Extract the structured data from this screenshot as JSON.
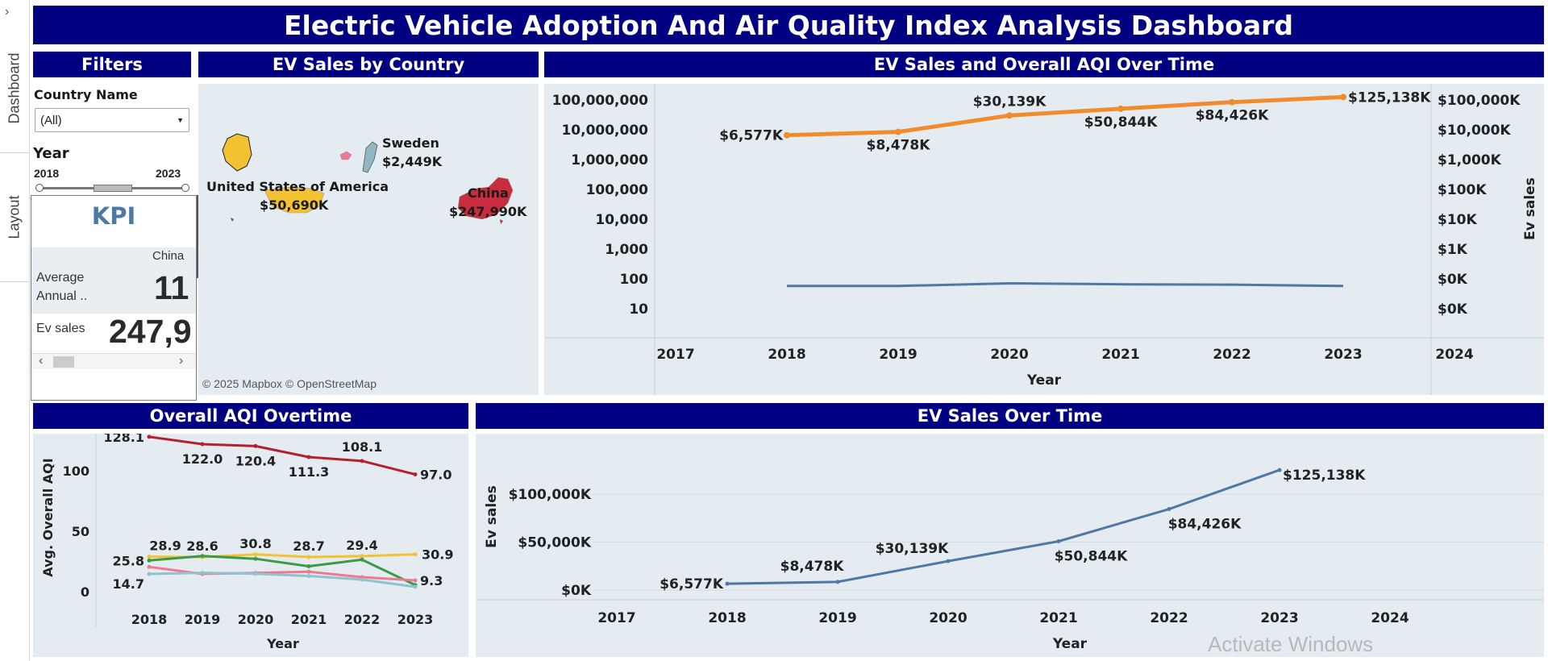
{
  "sidebar": {
    "expand_label": "›",
    "tabs": [
      "Dashboard",
      "Layout"
    ]
  },
  "dashboard": {
    "title": "Electric Vehicle Adoption And Air Quality Index Analysis Dashboard"
  },
  "filters": {
    "title": "Filters",
    "country_label": "Country Name",
    "country_value": "(All)",
    "year_label": "Year",
    "year_min": "2018",
    "year_max": "2023"
  },
  "kpi": {
    "title": "KPI",
    "column_header": "China",
    "row1_label_line1": "Average",
    "row1_label_line2": "Annual ..",
    "row1_value": "11",
    "row2_label": "Ev sales",
    "row2_value": "247,9",
    "scroll_left": "‹",
    "scroll_right": "›"
  },
  "map": {
    "title": "EV Sales by Country",
    "attribution": "© 2025 Mapbox © OpenStreetMap",
    "countries": [
      {
        "name": "United States of America",
        "value": "$50,690K",
        "color": "#f2c233"
      },
      {
        "name": "Sweden",
        "value": "$2,449K",
        "color": "#8fb8c4"
      },
      {
        "name": "China",
        "value": "$247,990K",
        "color": "#c92c3c"
      }
    ]
  },
  "colors": {
    "banner": "#000080",
    "panel": "#e4ecf1",
    "orange": "#f08c2e",
    "blue": "#4e79a7"
  },
  "chart_data": [
    {
      "type": "line",
      "title": "EV Sales and Overall AQI Over Time",
      "xlabel": "Year",
      "y2label": "Ev sales",
      "x_ticks": [
        "2017",
        "2018",
        "2019",
        "2020",
        "2021",
        "2022",
        "2023",
        "2024"
      ],
      "y_scale": "log",
      "y_ticks_left": [
        "100,000,000",
        "10,000,000",
        "1,000,000",
        "100,000",
        "10,000",
        "1,000",
        "100",
        "10"
      ],
      "y_ticks_right": [
        "$100,000K",
        "$10,000K",
        "$1,000K",
        "$100K",
        "$10K",
        "$1K",
        "$0K",
        "$0K"
      ],
      "series": [
        {
          "name": "Ev sales",
          "color": "#f08c2e",
          "x": [
            2018,
            2019,
            2020,
            2021,
            2022,
            2023
          ],
          "values": [
            6577000,
            8478000,
            30139000,
            50844000,
            84426000,
            125138000
          ],
          "labels": [
            "$6,577K",
            "$8,478K",
            "$30,139K",
            "$50,844K",
            "$84,426K",
            "$125,138K"
          ]
        },
        {
          "color": "#4e79a7",
          "x": [
            2018,
            2019,
            2020,
            2021,
            2022,
            2023
          ],
          "values": [
            58,
            58,
            71,
            66,
            64,
            58
          ]
        }
      ]
    },
    {
      "type": "line",
      "title": "Overall AQI Overtime",
      "xlabel": "Year",
      "ylabel": "Avg. Overall AQI",
      "x_ticks": [
        "2018",
        "2019",
        "2020",
        "2021",
        "2022",
        "2023"
      ],
      "y_ticks": [
        "0",
        "50",
        "100"
      ],
      "ylim": [
        0,
        130
      ],
      "series": [
        {
          "color": "#b5202e",
          "values": [
            128.1,
            122.0,
            120.4,
            111.3,
            108.1,
            97.0
          ],
          "labels": [
            "128.1",
            "122.0",
            "120.4",
            "111.3",
            "108.1",
            "97.0"
          ]
        },
        {
          "color": "#f2c233",
          "values": [
            28.9,
            28.6,
            30.8,
            28.7,
            29.4,
            30.9
          ],
          "labels": [
            "28.9",
            "28.6",
            "30.8",
            "28.7",
            "29.4",
            "30.9"
          ]
        },
        {
          "color": "#3a9a45",
          "values": [
            25.8,
            29.5,
            27.2,
            21.0,
            26.5,
            5.5
          ],
          "labels": [
            "25.8",
            "",
            "",
            "",
            "",
            ""
          ]
        },
        {
          "color": "#f07890",
          "values": [
            20.5,
            14.7,
            15.5,
            16.5,
            12.0,
            9.3
          ],
          "labels": [
            "",
            "",
            "",
            "",
            "",
            "9.3"
          ]
        },
        {
          "color": "#8fc3cf",
          "values": [
            14.7,
            15.6,
            14.8,
            13.0,
            10.0,
            4.0
          ],
          "labels": [
            "14.7",
            "",
            "",
            "",
            "",
            ""
          ]
        }
      ]
    },
    {
      "type": "line",
      "title": "EV Sales Over Time",
      "xlabel": "Year",
      "ylabel": "Ev sales",
      "x_ticks": [
        "2017",
        "2018",
        "2019",
        "2020",
        "2021",
        "2022",
        "2023",
        "2024"
      ],
      "y_ticks": [
        "$0K",
        "$50,000K",
        "$100,000K"
      ],
      "ylim": [
        0,
        130000
      ],
      "series": [
        {
          "color": "#4e79a7",
          "x": [
            2018,
            2019,
            2020,
            2021,
            2022,
            2023
          ],
          "values": [
            6577,
            8478,
            30139,
            50844,
            84426,
            125138
          ],
          "labels": [
            "$6,577K",
            "$8,478K",
            "$30,139K",
            "$50,844K",
            "$84,426K",
            "$125,138K"
          ]
        }
      ]
    }
  ],
  "os_watermark": "Activate Windows"
}
